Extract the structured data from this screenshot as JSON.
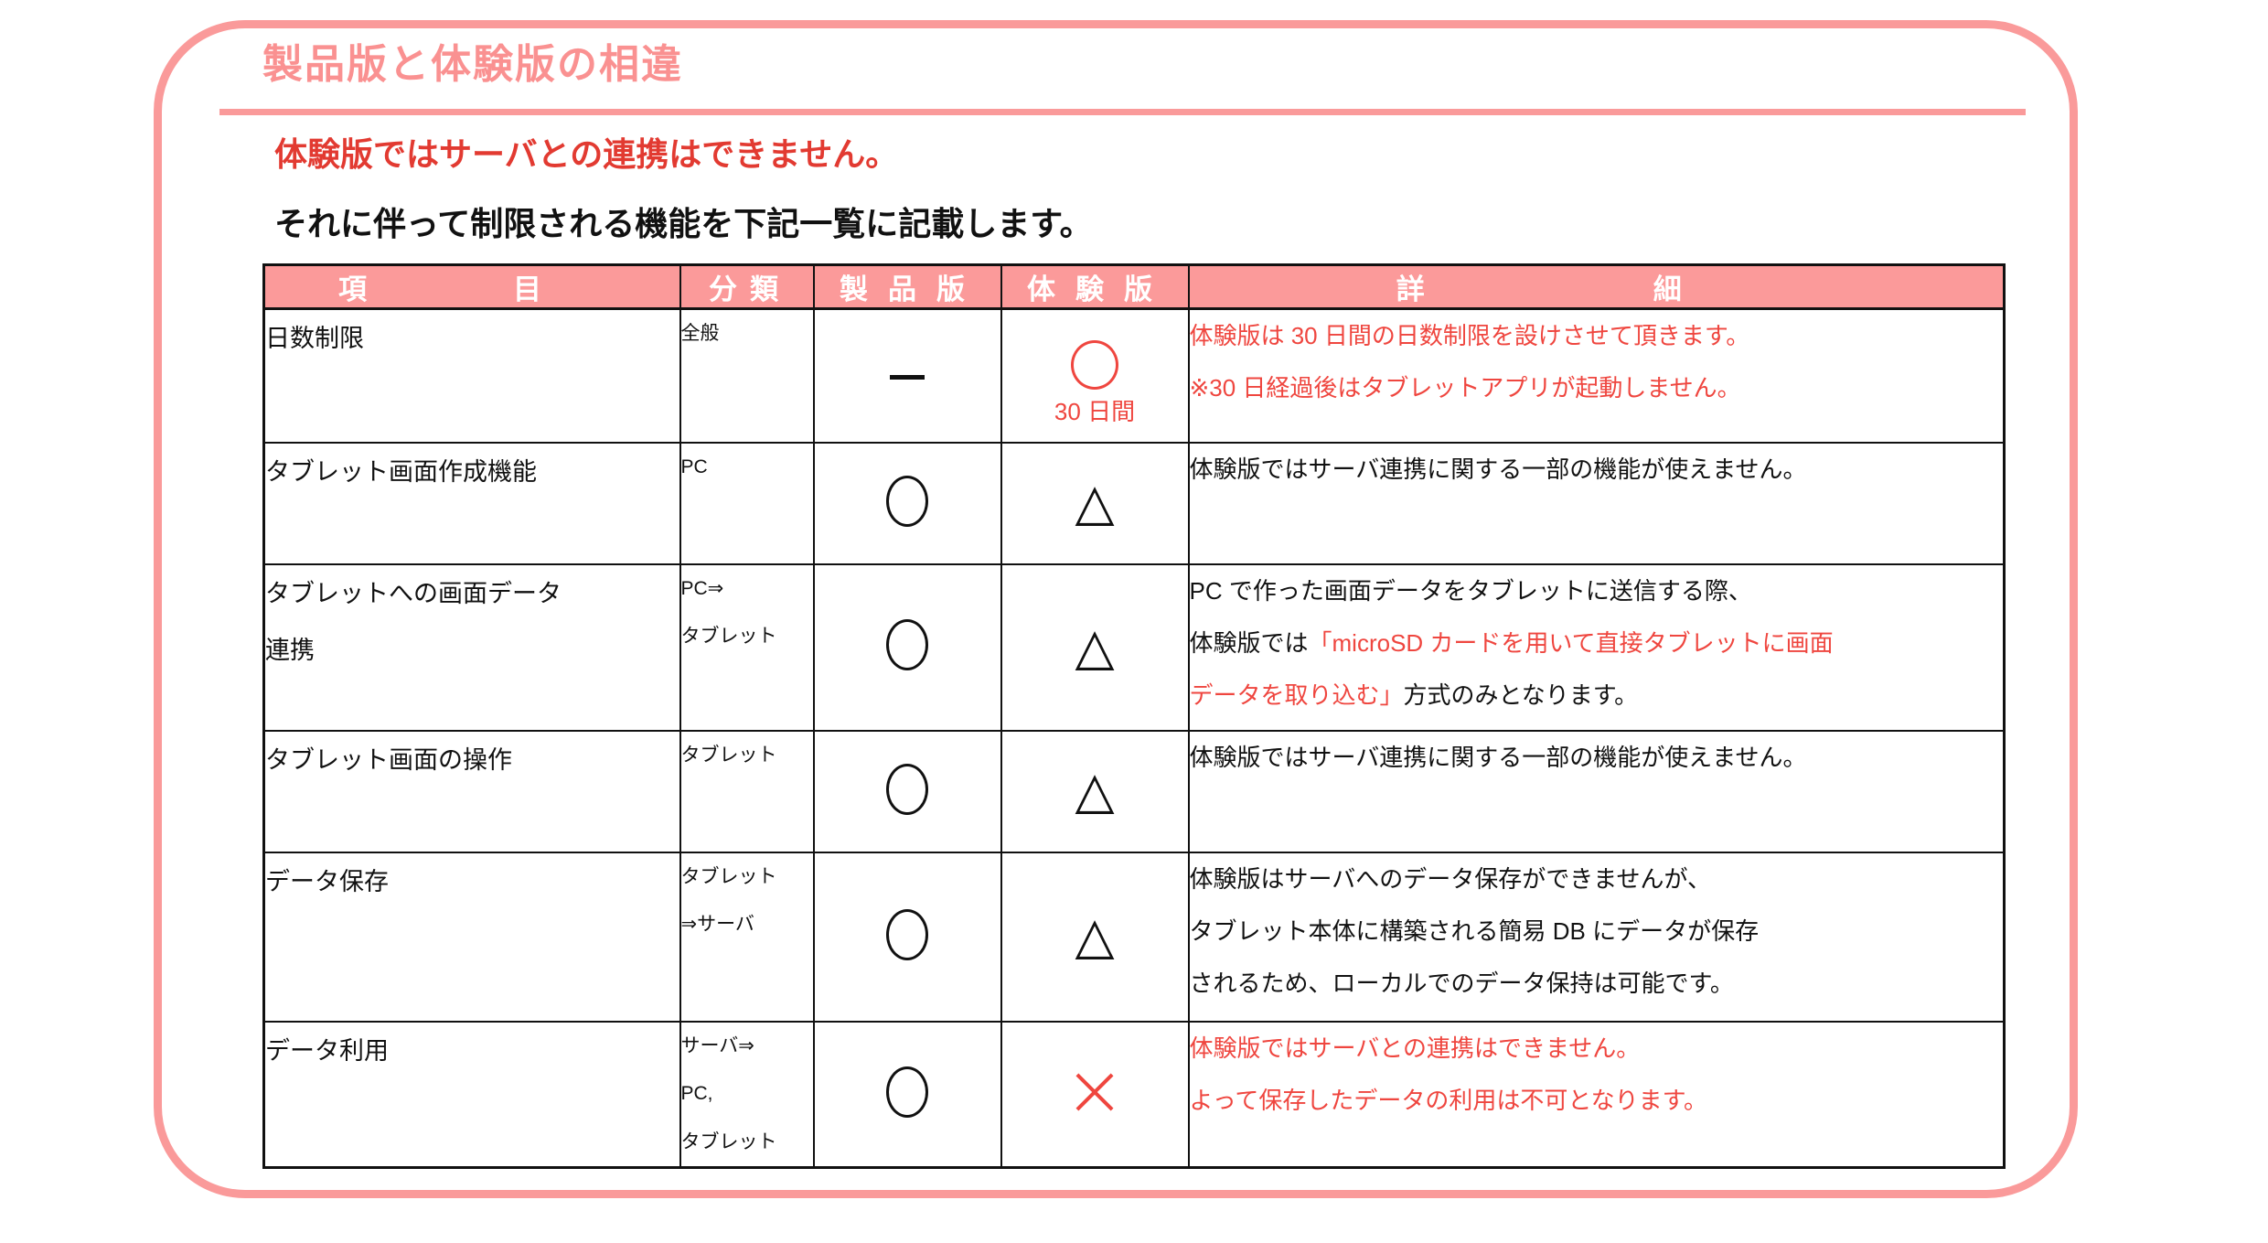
{
  "colors": {
    "salmon_accent": "#fa9a9a",
    "header_fill": "#fb9a9a",
    "intro_red": "#e23a31",
    "table_red": "#ef463f",
    "ink": "#111111"
  },
  "page": {
    "title": "製品版と体験版の相違",
    "intro_red": "体験版ではサーバとの連携はできません。",
    "intro_black": "それに伴って制限される機能を下記一覧に記載します。"
  },
  "table": {
    "headers": {
      "item": "項目",
      "category": "分類",
      "product": "製品版",
      "trial": "体験版",
      "detail": "詳細"
    },
    "symbols": {
      "circle": "○",
      "triangle": "△",
      "cross": "✕",
      "dash": "―"
    },
    "rows": [
      {
        "item": "日数制限",
        "category": "全般",
        "product_symbol": "dash",
        "trial_symbol": "circle-red",
        "trial_label": "30 日間",
        "detail": [
          [
            {
              "t": "体験版は 30 日間の日数制限を設けさせて頂きます。",
              "c": "red"
            }
          ],
          [
            {
              "t": "※30 日経過後はタブレットアプリが起動しません。",
              "c": "red"
            }
          ]
        ]
      },
      {
        "item": "タブレット画面作成機能",
        "category": "PC",
        "product_symbol": "circle",
        "trial_symbol": "triangle",
        "trial_label": "",
        "detail": [
          [
            {
              "t": "体験版ではサーバ連携に関する一部の機能が使えません。",
              "c": "black"
            }
          ]
        ]
      },
      {
        "item": "タブレットへの画面データ\n連携",
        "category": "PC⇒\nタブレット",
        "product_symbol": "circle",
        "trial_symbol": "triangle",
        "trial_label": "",
        "detail": [
          [
            {
              "t": "PC で作った画面データをタブレットに送信する際、",
              "c": "black"
            }
          ],
          [
            {
              "t": "体験版では",
              "c": "black"
            },
            {
              "t": "「microSD カードを用いて直接タブレットに画面",
              "c": "red"
            }
          ],
          [
            {
              "t": "データを取り込む」",
              "c": "red"
            },
            {
              "t": "方式のみとなります。",
              "c": "black"
            }
          ]
        ]
      },
      {
        "item": "タブレット画面の操作",
        "category": "タブレット",
        "product_symbol": "circle",
        "trial_symbol": "triangle",
        "trial_label": "",
        "detail": [
          [
            {
              "t": "体験版ではサーバ連携に関する一部の機能が使えません。",
              "c": "black"
            }
          ]
        ]
      },
      {
        "item": "データ保存",
        "category": "タブレット\n⇒サーバ",
        "product_symbol": "circle",
        "trial_symbol": "triangle",
        "trial_label": "",
        "detail": [
          [
            {
              "t": "体験版はサーバへのデータ保存ができませんが、",
              "c": "black"
            }
          ],
          [
            {
              "t": "タブレット本体に構築される簡易 DB にデータが保存",
              "c": "black"
            }
          ],
          [
            {
              "t": "されるため、ローカルでのデータ保持は可能です。",
              "c": "black"
            }
          ]
        ]
      },
      {
        "item": "データ利用",
        "category": "サーバ⇒\nPC,\nタブレット",
        "product_symbol": "circle",
        "trial_symbol": "cross",
        "trial_label": "",
        "detail": [
          [
            {
              "t": "体験版ではサーバとの連携はできません。",
              "c": "red"
            }
          ],
          [
            {
              "t": "よって保存したデータの利用は不可となります。",
              "c": "red"
            }
          ]
        ]
      }
    ]
  }
}
